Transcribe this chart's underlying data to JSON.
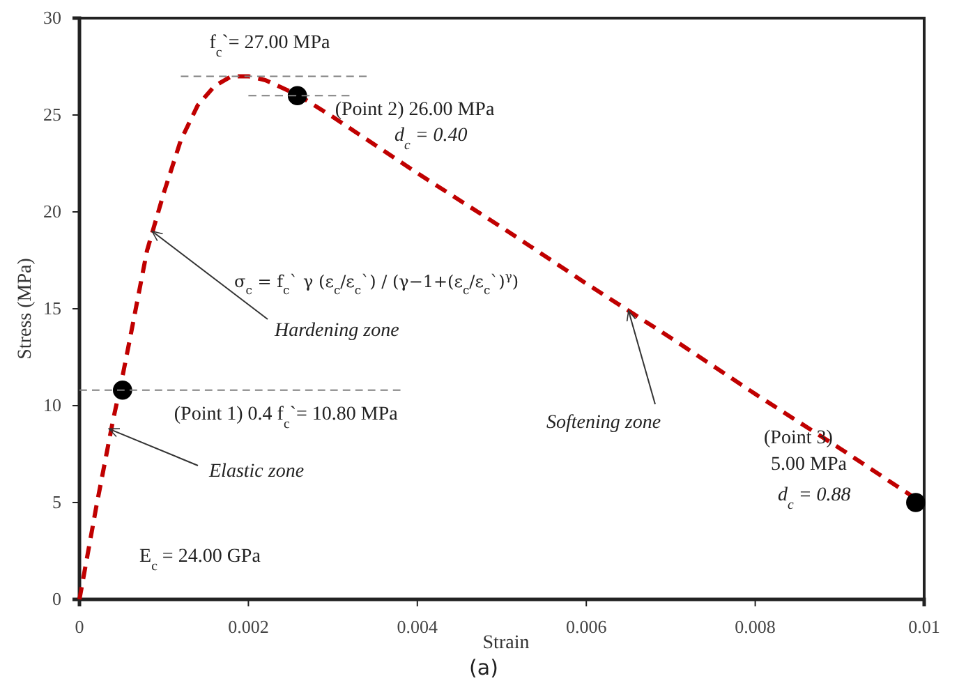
{
  "chart_data": {
    "type": "line",
    "xlabel": "Strain",
    "ylabel": "Stress (MPa)",
    "xlim": [
      0,
      0.01
    ],
    "xticks": [
      0,
      0.002,
      0.004,
      0.006,
      0.008,
      0.01
    ],
    "ylim": [
      0,
      30
    ],
    "yticks": [
      0,
      5,
      10,
      15,
      20,
      25,
      30
    ],
    "grid": false,
    "series": [
      {
        "color": "#c00000",
        "line_style": "dashed",
        "marker": "none",
        "x": [
          0,
          0.0002,
          0.0004,
          0.0005,
          0.0006,
          0.0008,
          0.001,
          0.0012,
          0.0014,
          0.0016,
          0.0018,
          0.002,
          0.0022,
          0.0024,
          0.0026,
          0.003,
          0.004,
          0.005,
          0.006,
          0.007,
          0.008,
          0.009,
          0.0099
        ],
        "values": [
          0,
          4.8,
          9.3,
          11.3,
          13.5,
          18,
          21,
          23.7,
          25.5,
          26.5,
          27,
          27,
          26.8,
          26.4,
          26,
          24.9,
          22,
          19.2,
          16.3,
          13.5,
          10.6,
          7.8,
          5.2
        ]
      },
      {
        "type": "scatter",
        "color": "#000000",
        "marker": "circle",
        "x": [
          0.00051,
          0.00258,
          0.0099
        ],
        "values": [
          10.8,
          26,
          5
        ]
      },
      {
        "type": "line",
        "color": "#808080",
        "line_style": "dashed",
        "marker": "none",
        "x": [
          0.0012,
          0.0034
        ],
        "values": [
          27,
          27
        ]
      },
      {
        "type": "line",
        "color": "#808080",
        "line_style": "dashed",
        "marker": "none",
        "x": [
          0.002,
          0.0032
        ],
        "values": [
          26,
          26
        ]
      },
      {
        "type": "line",
        "color": "#808080",
        "line_style": "dashed",
        "marker": "none",
        "x": [
          0,
          0.0038
        ],
        "values": [
          10.8,
          10.8
        ]
      }
    ],
    "annotations": [
      {
        "text": "f$_{c}$`= 27.00 MPa",
        "x": 0.002,
        "y": 27
      },
      {
        "text": "(Point 2) 26.00 MPa",
        "x": 0.00258,
        "y": 26
      },
      "d$_{c}$ = 0.40",
      {
        "text": "(Point 1) 0.4 f$_{c}$`= 10.80 MPa",
        "x": 0.00051,
        "y": 10.8
      },
      "E$_{c}$ = 24.00 GPa",
      {
        "text": "Elastic zone",
        "x": 0.00035,
        "y": 8.8
      },
      {
        "text": "Hardening zone",
        "x": 0.00086,
        "y": 19
      },
      "σ$_{c}$ = f$_{c}$` γ (ε$_{c}$/ε$_{c}$`) / (γ−1+(ε$_{c}$/ε$_{c}$`)$^{γ}$)",
      {
        "text": "Softening zone",
        "x": 0.0065,
        "y": 14.9
      },
      "(Point 3)",
      "5.00 MPa",
      "d$_{c}$ = 0.88",
      "(a)"
    ]
  }
}
